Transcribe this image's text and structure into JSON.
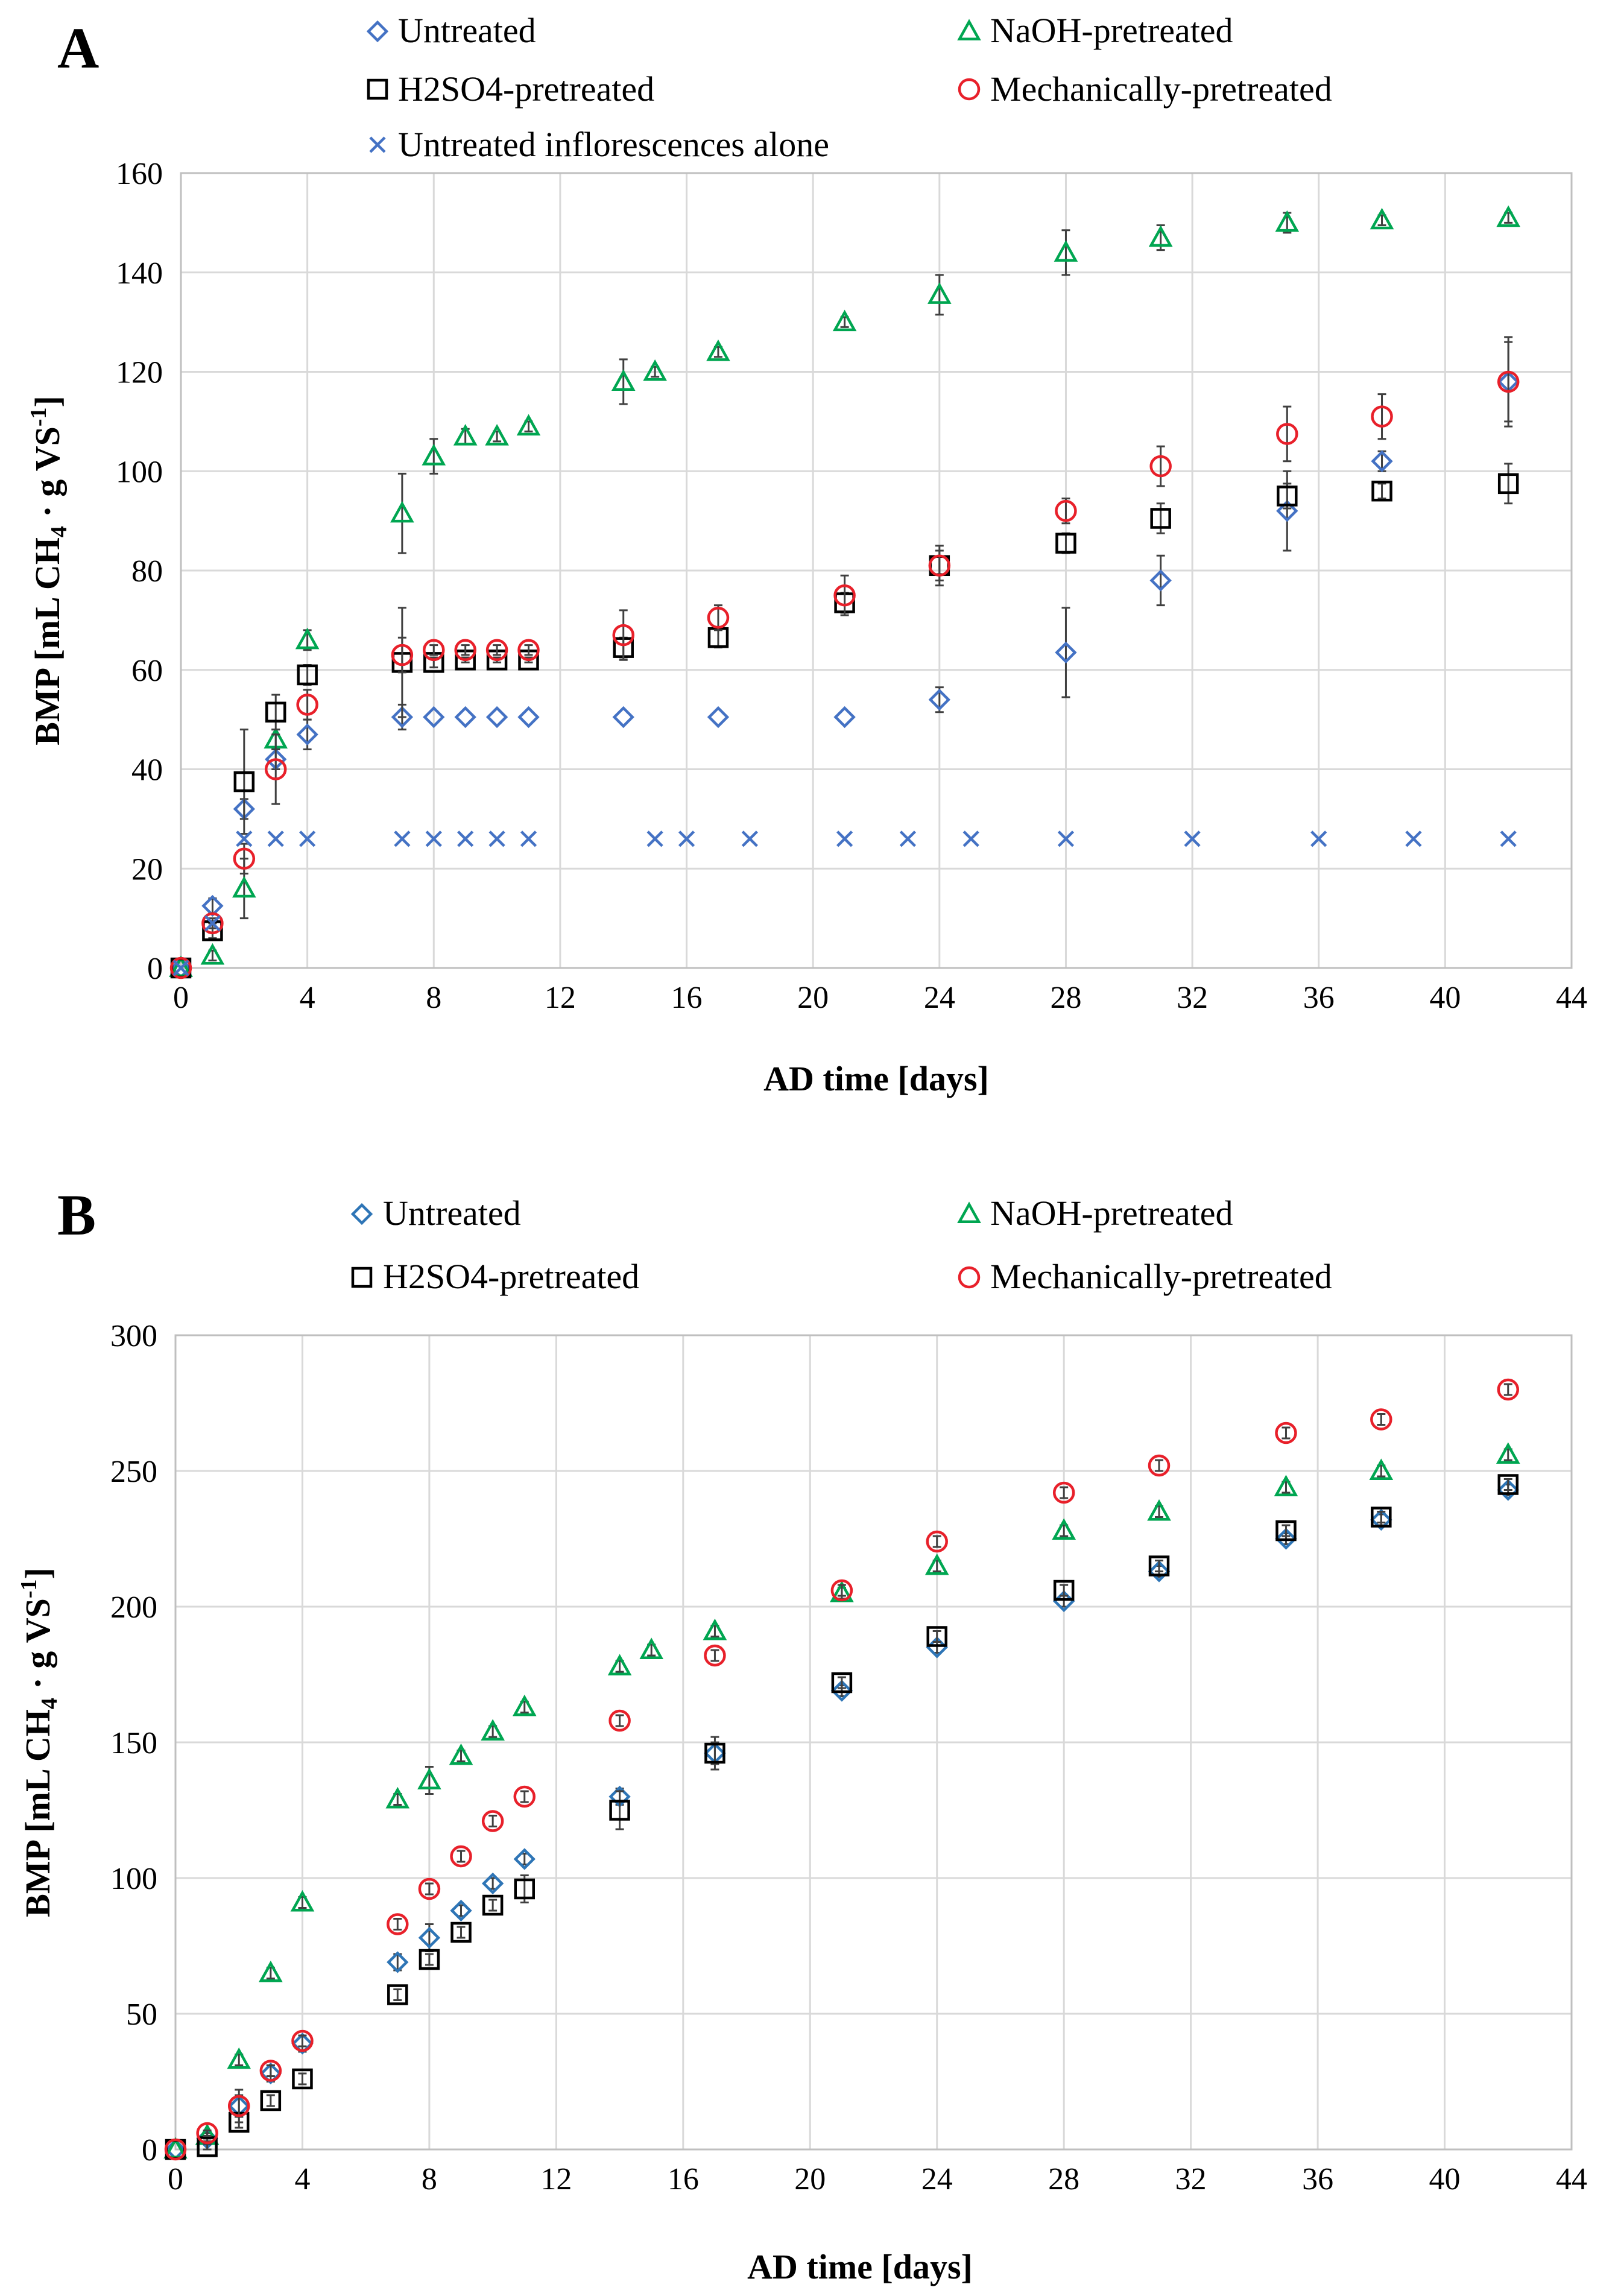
{
  "chart_data": [
    {
      "id": "A",
      "type": "scatter",
      "panel_label": "A",
      "xlabel": "AD time [days]",
      "ylabel": {
        "prefix": "BMP [mL CH",
        "sub1": "4",
        "middle": " · g VS",
        "sup": "-1",
        "suffix": "]"
      },
      "xlim": [
        0,
        44
      ],
      "ylim": [
        0,
        160
      ],
      "xticks": [
        "0",
        "4",
        "8",
        "12",
        "16",
        "20",
        "24",
        "28",
        "32",
        "36",
        "40",
        "44"
      ],
      "yticks": [
        "0",
        "20",
        "40",
        "60",
        "80",
        "100",
        "120",
        "140",
        "160"
      ],
      "grid": true,
      "legend_position": "top",
      "series": [
        {
          "name": "Untreated",
          "marker": "diamond",
          "color": "#4472C4",
          "x": [
            0,
            1,
            2,
            3,
            4,
            7,
            8,
            9,
            10,
            11,
            14,
            17,
            21,
            24,
            28,
            31,
            35,
            38,
            42
          ],
          "y": [
            0,
            12.5,
            32,
            42,
            47,
            50.5,
            50.5,
            50.5,
            50.5,
            50.5,
            50.5,
            50.5,
            50.5,
            54,
            63.5,
            78,
            92,
            102,
            118
          ],
          "err": [
            0,
            1.5,
            2,
            2,
            3,
            2.5,
            0,
            0,
            0,
            0,
            0,
            0,
            0,
            2.5,
            9,
            5,
            8,
            2,
            8
          ]
        },
        {
          "name": "NaOH-pretreated",
          "marker": "triangle",
          "color": "#00A651",
          "x": [
            0,
            1,
            2,
            3,
            4,
            7,
            8,
            9,
            10,
            11,
            14,
            15,
            17,
            21,
            24,
            28,
            31,
            35,
            38,
            42
          ],
          "y": [
            0,
            2.5,
            16,
            46,
            66,
            91.5,
            103,
            107,
            107,
            109,
            118,
            120,
            124,
            130,
            135.5,
            144,
            147,
            150,
            150.5,
            151
          ],
          "err": [
            0,
            1,
            6,
            2,
            2,
            8,
            3.5,
            1.5,
            1,
            1,
            4.5,
            1,
            1,
            1,
            4,
            4.5,
            2.5,
            2,
            1,
            1
          ]
        },
        {
          "name": "H2SO4-pretreated",
          "marker": "square",
          "color": "#000000",
          "x": [
            0,
            1,
            2,
            3,
            4,
            7,
            8,
            9,
            10,
            11,
            14,
            17,
            21,
            24,
            28,
            31,
            35,
            38,
            42
          ],
          "y": [
            0,
            7.5,
            37.5,
            51.5,
            59,
            61.5,
            61.5,
            62,
            62,
            62,
            64.5,
            66.5,
            73.5,
            81,
            85.5,
            90.5,
            95,
            96,
            97.5
          ],
          "err": [
            0,
            1.5,
            10.5,
            3.5,
            2,
            11,
            1,
            0.5,
            0.5,
            0.5,
            2,
            2,
            2,
            4,
            2,
            3,
            2.5,
            1.5,
            4
          ]
        },
        {
          "name": "Mechanically-pretreated",
          "marker": "circle",
          "color": "#E8202A",
          "x": [
            0,
            1,
            2,
            3,
            4,
            7,
            8,
            9,
            10,
            11,
            14,
            17,
            21,
            24,
            28,
            31,
            35,
            38,
            42
          ],
          "y": [
            0,
            9,
            22,
            40,
            53,
            63,
            64,
            64,
            64,
            64,
            67,
            70.5,
            75,
            81,
            92,
            101,
            107.5,
            111,
            118
          ],
          "err": [
            0,
            1,
            3,
            7,
            3,
            3.5,
            1,
            1,
            1,
            1,
            5,
            2.5,
            4,
            3,
            2.5,
            4,
            5.5,
            4.5,
            9
          ]
        },
        {
          "name": "Untreated inflorescences alone",
          "marker": "x",
          "color": "#4472C4",
          "x": [
            0,
            1,
            2,
            3,
            4,
            7,
            8,
            9,
            10,
            11,
            15,
            16,
            18,
            21,
            23,
            25,
            28,
            32,
            36,
            39,
            42
          ],
          "y": [
            0,
            9,
            26,
            26,
            26,
            26,
            26,
            26,
            26,
            26,
            26,
            26,
            26,
            26,
            26,
            26,
            26,
            26,
            26,
            26,
            26
          ],
          "err": []
        }
      ]
    },
    {
      "id": "B",
      "type": "scatter",
      "panel_label": "B",
      "xlabel": "AD time [days]",
      "ylabel": {
        "prefix": "BMP [mL CH",
        "sub1": "4",
        "middle": " · g VS",
        "sup": "-1",
        "suffix": "]"
      },
      "xlim": [
        0,
        44
      ],
      "ylim": [
        0,
        300
      ],
      "xticks": [
        "0",
        "4",
        "8",
        "12",
        "16",
        "20",
        "24",
        "28",
        "32",
        "36",
        "40",
        "44"
      ],
      "yticks": [
        "0",
        "50",
        "100",
        "150",
        "200",
        "250",
        "300"
      ],
      "grid": true,
      "legend_position": "top",
      "series": [
        {
          "name": "Untreated",
          "marker": "diamond",
          "color": "#2E75B6",
          "x": [
            0,
            1,
            2,
            3,
            4,
            7,
            8,
            9,
            10,
            11,
            14,
            17,
            21,
            24,
            28,
            31,
            35,
            38,
            42
          ],
          "y": [
            0,
            4,
            16,
            28,
            39,
            69,
            78,
            88,
            98,
            107,
            130,
            146,
            169,
            185,
            202,
            213,
            225,
            232,
            243
          ],
          "err": [
            0,
            1,
            4,
            3,
            3,
            3,
            5,
            2,
            2,
            2,
            3,
            4,
            2,
            2,
            2,
            2,
            2,
            2,
            2
          ]
        },
        {
          "name": "NaOH-pretreated",
          "marker": "triangle",
          "color": "#00A651",
          "x": [
            0,
            1,
            2,
            3,
            4,
            7,
            8,
            9,
            10,
            11,
            14,
            15,
            17,
            21,
            24,
            28,
            31,
            35,
            38,
            42
          ],
          "y": [
            0,
            5,
            33,
            65,
            91,
            129,
            136,
            145,
            154,
            163,
            178,
            184,
            191,
            205,
            215,
            228,
            235,
            244,
            250,
            256
          ],
          "err": [
            0,
            1,
            2,
            2,
            2,
            2,
            5,
            2,
            2,
            2,
            2,
            2,
            2,
            2,
            2,
            2,
            2,
            2,
            2,
            2
          ]
        },
        {
          "name": "H2SO4-pretreated",
          "marker": "square",
          "color": "#000000",
          "x": [
            0,
            1,
            2,
            3,
            4,
            7,
            8,
            9,
            10,
            11,
            14,
            17,
            21,
            24,
            28,
            31,
            35,
            38,
            42
          ],
          "y": [
            0,
            1,
            10,
            18,
            26,
            57,
            70,
            80,
            90,
            96,
            125,
            146,
            172,
            189,
            206,
            215,
            228,
            233,
            245
          ],
          "err": [
            0,
            1,
            2,
            2,
            2,
            2,
            2,
            2,
            2,
            5,
            7,
            6,
            2,
            2,
            2,
            2,
            2,
            2,
            2
          ]
        },
        {
          "name": "Mechanically-pretreated",
          "marker": "circle",
          "color": "#E8202A",
          "x": [
            0,
            1,
            2,
            3,
            4,
            7,
            8,
            9,
            10,
            11,
            14,
            17,
            21,
            24,
            28,
            31,
            35,
            38,
            42
          ],
          "y": [
            0,
            6,
            16,
            29,
            40,
            83,
            96,
            108,
            121,
            130,
            158,
            182,
            206,
            224,
            242,
            252,
            264,
            269,
            280
          ],
          "err": [
            0,
            1,
            6,
            2,
            2,
            2,
            2,
            2,
            2,
            2,
            2,
            2,
            2,
            2,
            2,
            2,
            2,
            2,
            2
          ]
        }
      ]
    }
  ]
}
